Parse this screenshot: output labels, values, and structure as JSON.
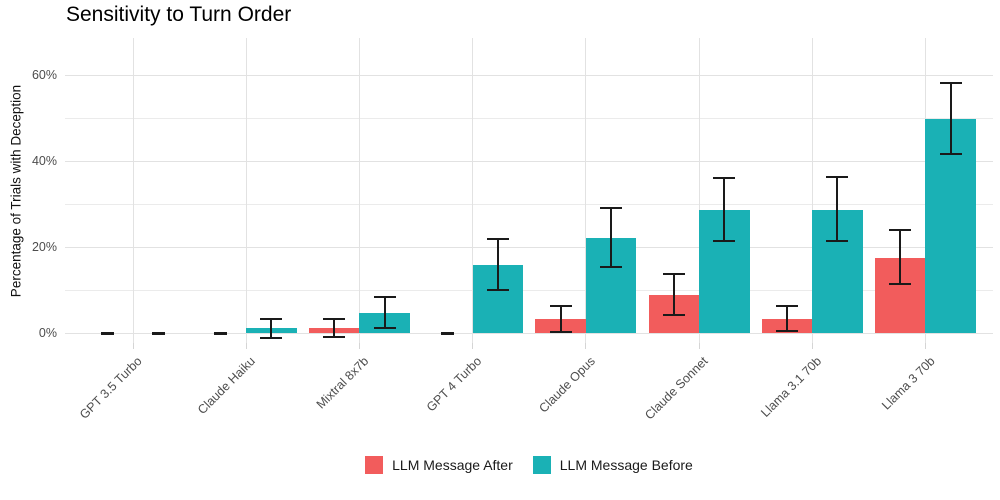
{
  "chart_data": {
    "type": "bar",
    "title": "Sensitivity to Turn Order",
    "xlabel": "",
    "ylabel": "Percentage of Trials with Deception",
    "categories": [
      "GPT 3.5 Turbo",
      "Claude Haiku",
      "Mixtral 8x7b",
      "GPT 4 Turbo",
      "Claude Opus",
      "Claude Sonnet",
      "Llama 3.1 70b",
      "Llama 3 70b"
    ],
    "series": [
      {
        "name": "LLM Message After",
        "color": "#F25C5C",
        "values": [
          0,
          0,
          1.3,
          0,
          3.4,
          8.9,
          3.4,
          17.4
        ],
        "err_lo": [
          0,
          0,
          -1.0,
          0,
          0.3,
          4.2,
          0.5,
          11.4
        ],
        "err_hi": [
          0,
          0,
          3.4,
          0,
          6.4,
          13.8,
          6.4,
          23.9
        ]
      },
      {
        "name": "LLM Message Before",
        "color": "#1AB1B5",
        "values": [
          0,
          1.3,
          4.8,
          15.9,
          22.2,
          28.7,
          28.6,
          49.8
        ],
        "err_lo": [
          0,
          -1.1,
          1.1,
          10.1,
          15.5,
          21.4,
          21.4,
          41.6
        ],
        "err_hi": [
          0,
          3.2,
          8.5,
          22.0,
          29.2,
          36.1,
          36.3,
          58.3
        ]
      }
    ],
    "y_ticks": [
      {
        "value": 0,
        "label": "0%"
      },
      {
        "value": 20,
        "label": "20%"
      },
      {
        "value": 40,
        "label": "40%"
      },
      {
        "value": 60,
        "label": "60%"
      }
    ],
    "y_minor_ticks": [
      10,
      30,
      50
    ],
    "ylim": [
      -2.3,
      68.7
    ],
    "grid": "horizontal major every 20%, minor every 10%, vertical line at each category center",
    "legend_position": "bottom-center",
    "x_tick_rotation_deg": 45,
    "error_bars": "95% confidence intervals, black caps"
  }
}
